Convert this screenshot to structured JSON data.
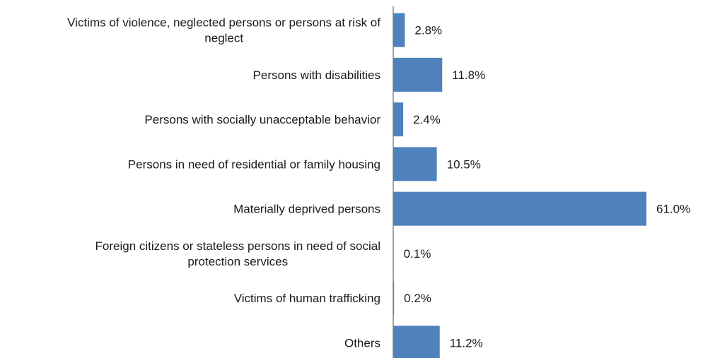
{
  "chart_data": {
    "type": "bar",
    "orientation": "horizontal",
    "title": "",
    "xlabel": "",
    "ylabel": "",
    "categories": [
      [
        "Victims of violence, neglected persons or persons at risk of",
        "neglect"
      ],
      [
        "Persons with disabilities"
      ],
      [
        "Persons with socially unacceptable behavior"
      ],
      [
        "Persons in need of residential or family housing"
      ],
      [
        "Materially deprived persons"
      ],
      [
        "Foreign citizens or stateless persons in need of social",
        "protection services"
      ],
      [
        "Victims of human trafficking"
      ],
      [
        "Others"
      ]
    ],
    "values": [
      2.8,
      11.8,
      2.4,
      10.5,
      61.0,
      0.1,
      0.2,
      11.2
    ],
    "value_labels": [
      "2.8%",
      "11.8%",
      "2.4%",
      "10.5%",
      "61.0%",
      "0.1%",
      "0.2%",
      "11.2%"
    ],
    "xlim": [
      0,
      61.0
    ],
    "grid": false,
    "legend": "none",
    "bar_color": "#4f81bd",
    "axis_color": "#868686"
  }
}
